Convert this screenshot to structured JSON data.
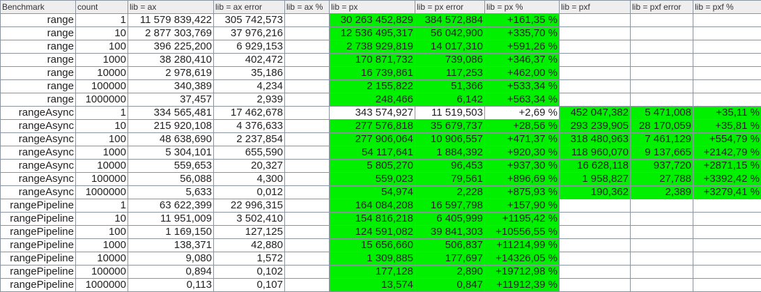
{
  "colors": {
    "highlight": "#00f000",
    "grid": "#8a949e",
    "header_bg": "#eeeeee"
  },
  "columns": [
    "Benchmark",
    "count",
    "lib = ax",
    "lib = ax error",
    "lib = ax %",
    "lib = px",
    "lib = px error",
    "lib = px %",
    "lib = pxf",
    "lib = pxf error",
    "lib = pxf %"
  ],
  "rows": [
    {
      "cells": [
        "range",
        "1",
        "11 579 839,422",
        "305 742,573",
        "",
        "30 263 452,829",
        "384 572,884",
        "+161,35 %",
        "",
        "",
        ""
      ],
      "green": [
        5,
        6,
        7
      ]
    },
    {
      "cells": [
        "range",
        "10",
        "2 877 303,769",
        "37 976,216",
        "",
        "12 536 495,317",
        "56 042,900",
        "+335,70 %",
        "",
        "",
        ""
      ],
      "green": [
        5,
        6,
        7
      ]
    },
    {
      "cells": [
        "range",
        "100",
        "396 225,200",
        "6 929,153",
        "",
        "2 738 929,819",
        "14 017,310",
        "+591,26 %",
        "",
        "",
        ""
      ],
      "green": [
        5,
        6,
        7
      ]
    },
    {
      "cells": [
        "range",
        "1000",
        "38 280,410",
        "402,472",
        "",
        "170 871,732",
        "739,086",
        "+346,37 %",
        "",
        "",
        ""
      ],
      "green": [
        5,
        6,
        7
      ]
    },
    {
      "cells": [
        "range",
        "10000",
        "2 978,619",
        "35,186",
        "",
        "16 739,861",
        "117,253",
        "+462,00 %",
        "",
        "",
        ""
      ],
      "green": [
        5,
        6,
        7
      ]
    },
    {
      "cells": [
        "range",
        "100000",
        "340,389",
        "4,234",
        "",
        "2 155,822",
        "51,366",
        "+533,34 %",
        "",
        "",
        ""
      ],
      "green": [
        5,
        6,
        7
      ]
    },
    {
      "cells": [
        "range",
        "1000000",
        "37,457",
        "2,939",
        "",
        "248,466",
        "6,142",
        "+563,34 %",
        "",
        "",
        ""
      ],
      "green": [
        5,
        6,
        7
      ]
    },
    {
      "cells": [
        "rangeAsync",
        "1",
        "334 565,481",
        "17 462,678",
        "",
        "343 574,927",
        "11 519,503",
        "+2,69 %",
        "452 047,382",
        "5 471,008",
        "+35,11 %"
      ],
      "green": [
        8,
        9,
        10
      ]
    },
    {
      "cells": [
        "rangeAsync",
        "10",
        "215 920,108",
        "4 376,633",
        "",
        "277 576,818",
        "35 679,737",
        "+28,56 %",
        "293 239,905",
        "28 170,059",
        "+35,81 %"
      ],
      "green": [
        5,
        6,
        7,
        8,
        9,
        10
      ]
    },
    {
      "cells": [
        "rangeAsync",
        "100",
        "48 638,690",
        "2 237,854",
        "",
        "277 906,064",
        "10 906,557",
        "+471,37 %",
        "318 480,963",
        "7 461,129",
        "+554,79 %"
      ],
      "green": [
        5,
        6,
        7,
        8,
        9,
        10
      ]
    },
    {
      "cells": [
        "rangeAsync",
        "1000",
        "5 304,101",
        "655,590",
        "",
        "54 117,641",
        "1 884,392",
        "+920,30 %",
        "118 960,070",
        "9 137,665",
        "+2142,79 %"
      ],
      "green": [
        5,
        6,
        7,
        8,
        9,
        10
      ]
    },
    {
      "cells": [
        "rangeAsync",
        "10000",
        "559,653",
        "20,327",
        "",
        "5 805,270",
        "96,453",
        "+937,30 %",
        "16 628,118",
        "937,720",
        "+2871,15 %"
      ],
      "green": [
        5,
        6,
        7,
        8,
        9,
        10
      ]
    },
    {
      "cells": [
        "rangeAsync",
        "100000",
        "56,088",
        "4,300",
        "",
        "559,023",
        "79,561",
        "+896,69 %",
        "1 958,827",
        "27,788",
        "+3392,42 %"
      ],
      "green": [
        5,
        6,
        7,
        8,
        9,
        10
      ]
    },
    {
      "cells": [
        "rangeAsync",
        "1000000",
        "5,633",
        "0,012",
        "",
        "54,974",
        "2,228",
        "+875,93 %",
        "190,362",
        "2,389",
        "+3279,41 %"
      ],
      "green": [
        5,
        6,
        7,
        8,
        9,
        10
      ]
    },
    {
      "cells": [
        "rangePipeline",
        "1",
        "63 622,399",
        "22 996,315",
        "",
        "164 084,208",
        "16 597,798",
        "+157,90 %",
        "",
        "",
        ""
      ],
      "green": [
        5,
        6,
        7
      ]
    },
    {
      "cells": [
        "rangePipeline",
        "10",
        "11 951,009",
        "3 502,410",
        "",
        "154 816,218",
        "6 405,999",
        "+1195,42 %",
        "",
        "",
        ""
      ],
      "green": [
        5,
        6,
        7
      ]
    },
    {
      "cells": [
        "rangePipeline",
        "100",
        "1 169,150",
        "127,125",
        "",
        "124 591,082",
        "39 841,303",
        "+10556,55 %",
        "",
        "",
        ""
      ],
      "green": [
        5,
        6,
        7
      ]
    },
    {
      "cells": [
        "rangePipeline",
        "1000",
        "138,371",
        "42,880",
        "",
        "15 656,660",
        "506,837",
        "+11214,99 %",
        "",
        "",
        ""
      ],
      "green": [
        5,
        6,
        7
      ]
    },
    {
      "cells": [
        "rangePipeline",
        "10000",
        "9,080",
        "1,572",
        "",
        "1 309,885",
        "177,697",
        "+14326,05 %",
        "",
        "",
        ""
      ],
      "green": [
        5,
        6,
        7
      ]
    },
    {
      "cells": [
        "rangePipeline",
        "100000",
        "0,894",
        "0,102",
        "",
        "177,128",
        "2,890",
        "+19712,98 %",
        "",
        "",
        ""
      ],
      "green": [
        5,
        6,
        7
      ]
    },
    {
      "cells": [
        "rangePipeline",
        "1000000",
        "0,113",
        "0,107",
        "",
        "13,574",
        "0,847",
        "+11912,39 %",
        "",
        "",
        ""
      ],
      "green": [
        5,
        6,
        7
      ]
    }
  ]
}
